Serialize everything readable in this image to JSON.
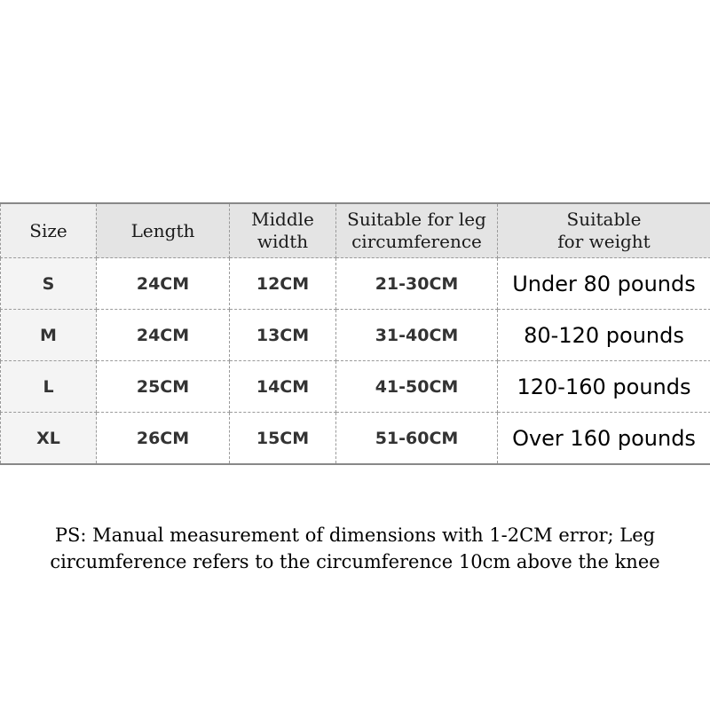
{
  "table": {
    "headers": [
      "Size",
      "Length",
      "Middle width",
      "Suitable for leg circumference",
      "Suitable for weight"
    ],
    "rows": [
      [
        "S",
        "24CM",
        "12CM",
        "21-30CM",
        "Under 80 pounds"
      ],
      [
        "M",
        "24CM",
        "13CM",
        "31-40CM",
        "80-120 pounds"
      ],
      [
        "L",
        "25CM",
        "14CM",
        "41-50CM",
        "120-160 pounds"
      ],
      [
        "XL",
        "26CM",
        "15CM",
        "51-60CM",
        "Over 160 pounds"
      ]
    ]
  },
  "note": {
    "line1": "PS: Manual measurement of dimensions with 1-2CM error; Leg",
    "line2": "circumference refers to the circumference 10cm above the knee"
  }
}
